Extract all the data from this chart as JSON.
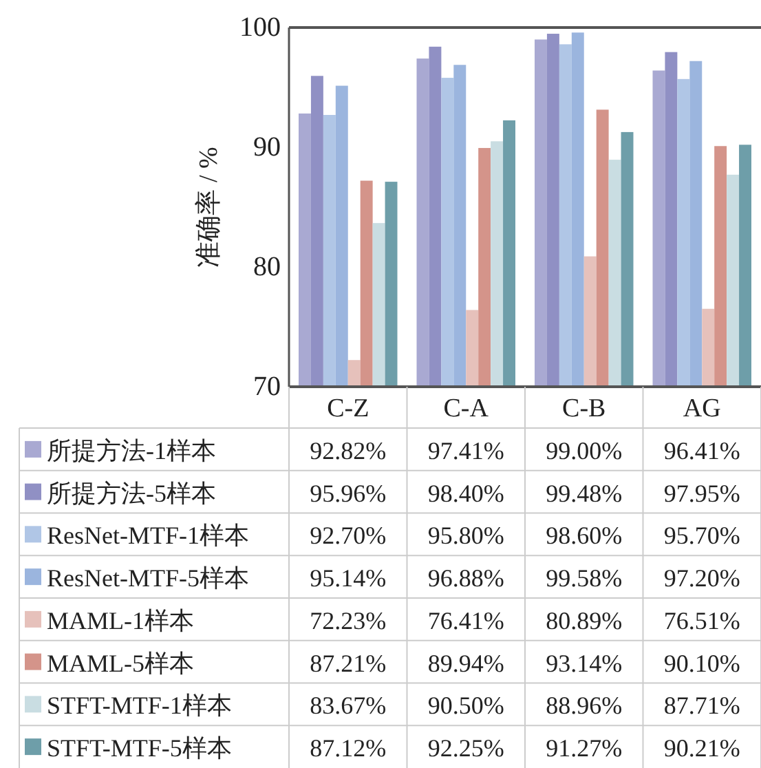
{
  "chart_data": {
    "type": "bar",
    "ylabel": "准确率 / %",
    "categories": [
      "C-Z",
      "C-A",
      "C-B",
      "AG"
    ],
    "ylim": [
      70,
      100
    ],
    "yticks": [
      70,
      80,
      90,
      100
    ],
    "grid": false,
    "legend": "bottom",
    "series": [
      {
        "name": "所提方法-1样本",
        "color": "#a9a9d2",
        "values": [
          92.82,
          97.41,
          99.0,
          96.41
        ],
        "value_labels": [
          "92.82%",
          "97.41%",
          "99.00%",
          "96.41%"
        ]
      },
      {
        "name": "所提方法-5样本",
        "color": "#9090c4",
        "values": [
          95.96,
          98.4,
          99.48,
          97.95
        ],
        "value_labels": [
          "95.96%",
          "98.40%",
          "99.48%",
          "97.95%"
        ]
      },
      {
        "name": "ResNet-MTF-1样本",
        "color": "#b0c6e6",
        "values": [
          92.7,
          95.8,
          98.6,
          95.7
        ],
        "value_labels": [
          "92.70%",
          "95.80%",
          "98.60%",
          "95.70%"
        ]
      },
      {
        "name": "ResNet-MTF-5样本",
        "color": "#9bb5de",
        "values": [
          95.14,
          96.88,
          99.58,
          97.2
        ],
        "value_labels": [
          "95.14%",
          "96.88%",
          "99.58%",
          "97.20%"
        ]
      },
      {
        "name": "MAML-1样本",
        "color": "#e6c1bb",
        "values": [
          72.23,
          76.41,
          80.89,
          76.51
        ],
        "value_labels": [
          "72.23%",
          "76.41%",
          "80.89%",
          "76.51%"
        ]
      },
      {
        "name": "MAML-5样本",
        "color": "#d4948a",
        "values": [
          87.21,
          89.94,
          93.14,
          90.1
        ],
        "value_labels": [
          "87.21%",
          "89.94%",
          "93.14%",
          "90.10%"
        ]
      },
      {
        "name": "STFT-MTF-1样本",
        "color": "#c9dde2",
        "values": [
          83.67,
          90.5,
          88.96,
          87.71
        ],
        "value_labels": [
          "83.67%",
          "90.50%",
          "88.96%",
          "87.71%"
        ]
      },
      {
        "name": "STFT-MTF-5样本",
        "color": "#6e9ea9",
        "values": [
          87.12,
          92.25,
          91.27,
          90.21
        ],
        "value_labels": [
          "87.12%",
          "92.25%",
          "91.27%",
          "90.21%"
        ]
      }
    ]
  }
}
